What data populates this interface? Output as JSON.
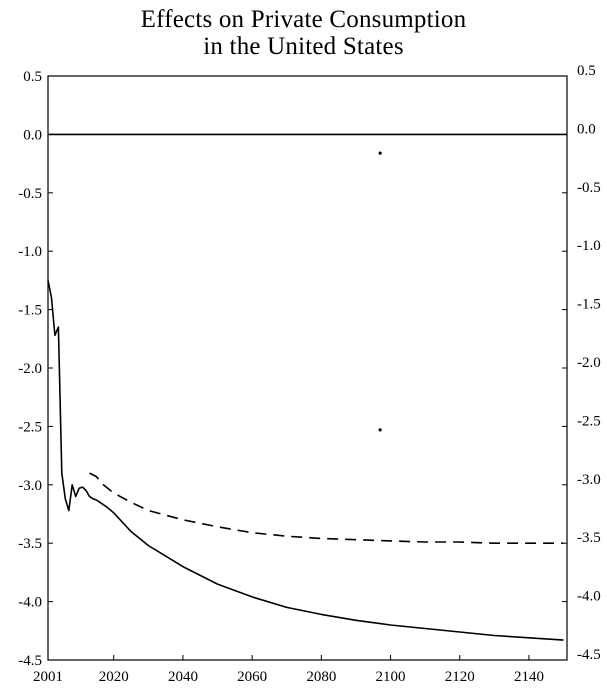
{
  "chart_data": {
    "type": "line",
    "title": "Effects on Private Consumption\nin the United States",
    "title_lines": [
      "Effects on Private Consumption",
      "in the United States"
    ],
    "xlabel": "",
    "ylabel": "",
    "xlim": [
      2001,
      2151
    ],
    "ylim": [
      -4.5,
      0.5
    ],
    "x_ticks": [
      {
        "value": 2001,
        "label": "2001"
      },
      {
        "value": 2020,
        "label": "2020"
      },
      {
        "value": 2040,
        "label": "2040"
      },
      {
        "value": 2060,
        "label": "2060"
      },
      {
        "value": 2080,
        "label": "2080"
      },
      {
        "value": 2100,
        "label": "2100"
      },
      {
        "value": 2120,
        "label": "2120"
      },
      {
        "value": 2140,
        "label": "2140"
      }
    ],
    "y_ticks": [
      {
        "value": 0.5,
        "label": "0.5"
      },
      {
        "value": 0.0,
        "label": "0.0"
      },
      {
        "value": -0.5,
        "label": "-0.5"
      },
      {
        "value": -1.0,
        "label": "-1.0"
      },
      {
        "value": -1.5,
        "label": "-1.5"
      },
      {
        "value": -2.0,
        "label": "-2.0"
      },
      {
        "value": -2.5,
        "label": "-2.5"
      },
      {
        "value": -3.0,
        "label": "-3.0"
      },
      {
        "value": -3.5,
        "label": "-3.5"
      },
      {
        "value": -4.0,
        "label": "-4.0"
      },
      {
        "value": -4.5,
        "label": "-4.5"
      }
    ],
    "grid": false,
    "legend": "none",
    "reference_line": {
      "y": 0.0
    },
    "series": [
      {
        "style": "solid",
        "color": "#000000",
        "x": [
          2001,
          2002,
          2003,
          2004,
          2005,
          2006,
          2007,
          2008,
          2009,
          2010,
          2011,
          2012,
          2013,
          2014,
          2015,
          2016,
          2017,
          2018,
          2020,
          2025,
          2030,
          2040,
          2050,
          2060,
          2070,
          2080,
          2090,
          2100,
          2110,
          2120,
          2130,
          2140,
          2150
        ],
        "y": [
          -1.25,
          -1.4,
          -1.72,
          -1.65,
          -2.9,
          -3.12,
          -3.22,
          -3.0,
          -3.1,
          -3.03,
          -3.02,
          -3.05,
          -3.1,
          -3.12,
          -3.13,
          -3.15,
          -3.17,
          -3.19,
          -3.24,
          -3.4,
          -3.52,
          -3.7,
          -3.85,
          -3.96,
          -4.05,
          -4.11,
          -4.16,
          -4.2,
          -4.23,
          -4.26,
          -4.29,
          -4.31,
          -4.33
        ]
      },
      {
        "style": "dashed",
        "color": "#000000",
        "x": [
          2013,
          2015,
          2017,
          2020,
          2025,
          2030,
          2040,
          2050,
          2060,
          2070,
          2080,
          2090,
          2100,
          2110,
          2120,
          2130,
          2140,
          2150
        ],
        "y": [
          -2.9,
          -2.93,
          -3.0,
          -3.07,
          -3.15,
          -3.22,
          -3.3,
          -3.36,
          -3.41,
          -3.44,
          -3.46,
          -3.47,
          -3.48,
          -3.49,
          -3.49,
          -3.5,
          -3.5,
          -3.5
        ]
      }
    ],
    "annotations": [
      {
        "type": "dot",
        "x": 2097,
        "y": -0.16
      },
      {
        "type": "dot",
        "x": 2097,
        "y": -2.53
      }
    ]
  }
}
